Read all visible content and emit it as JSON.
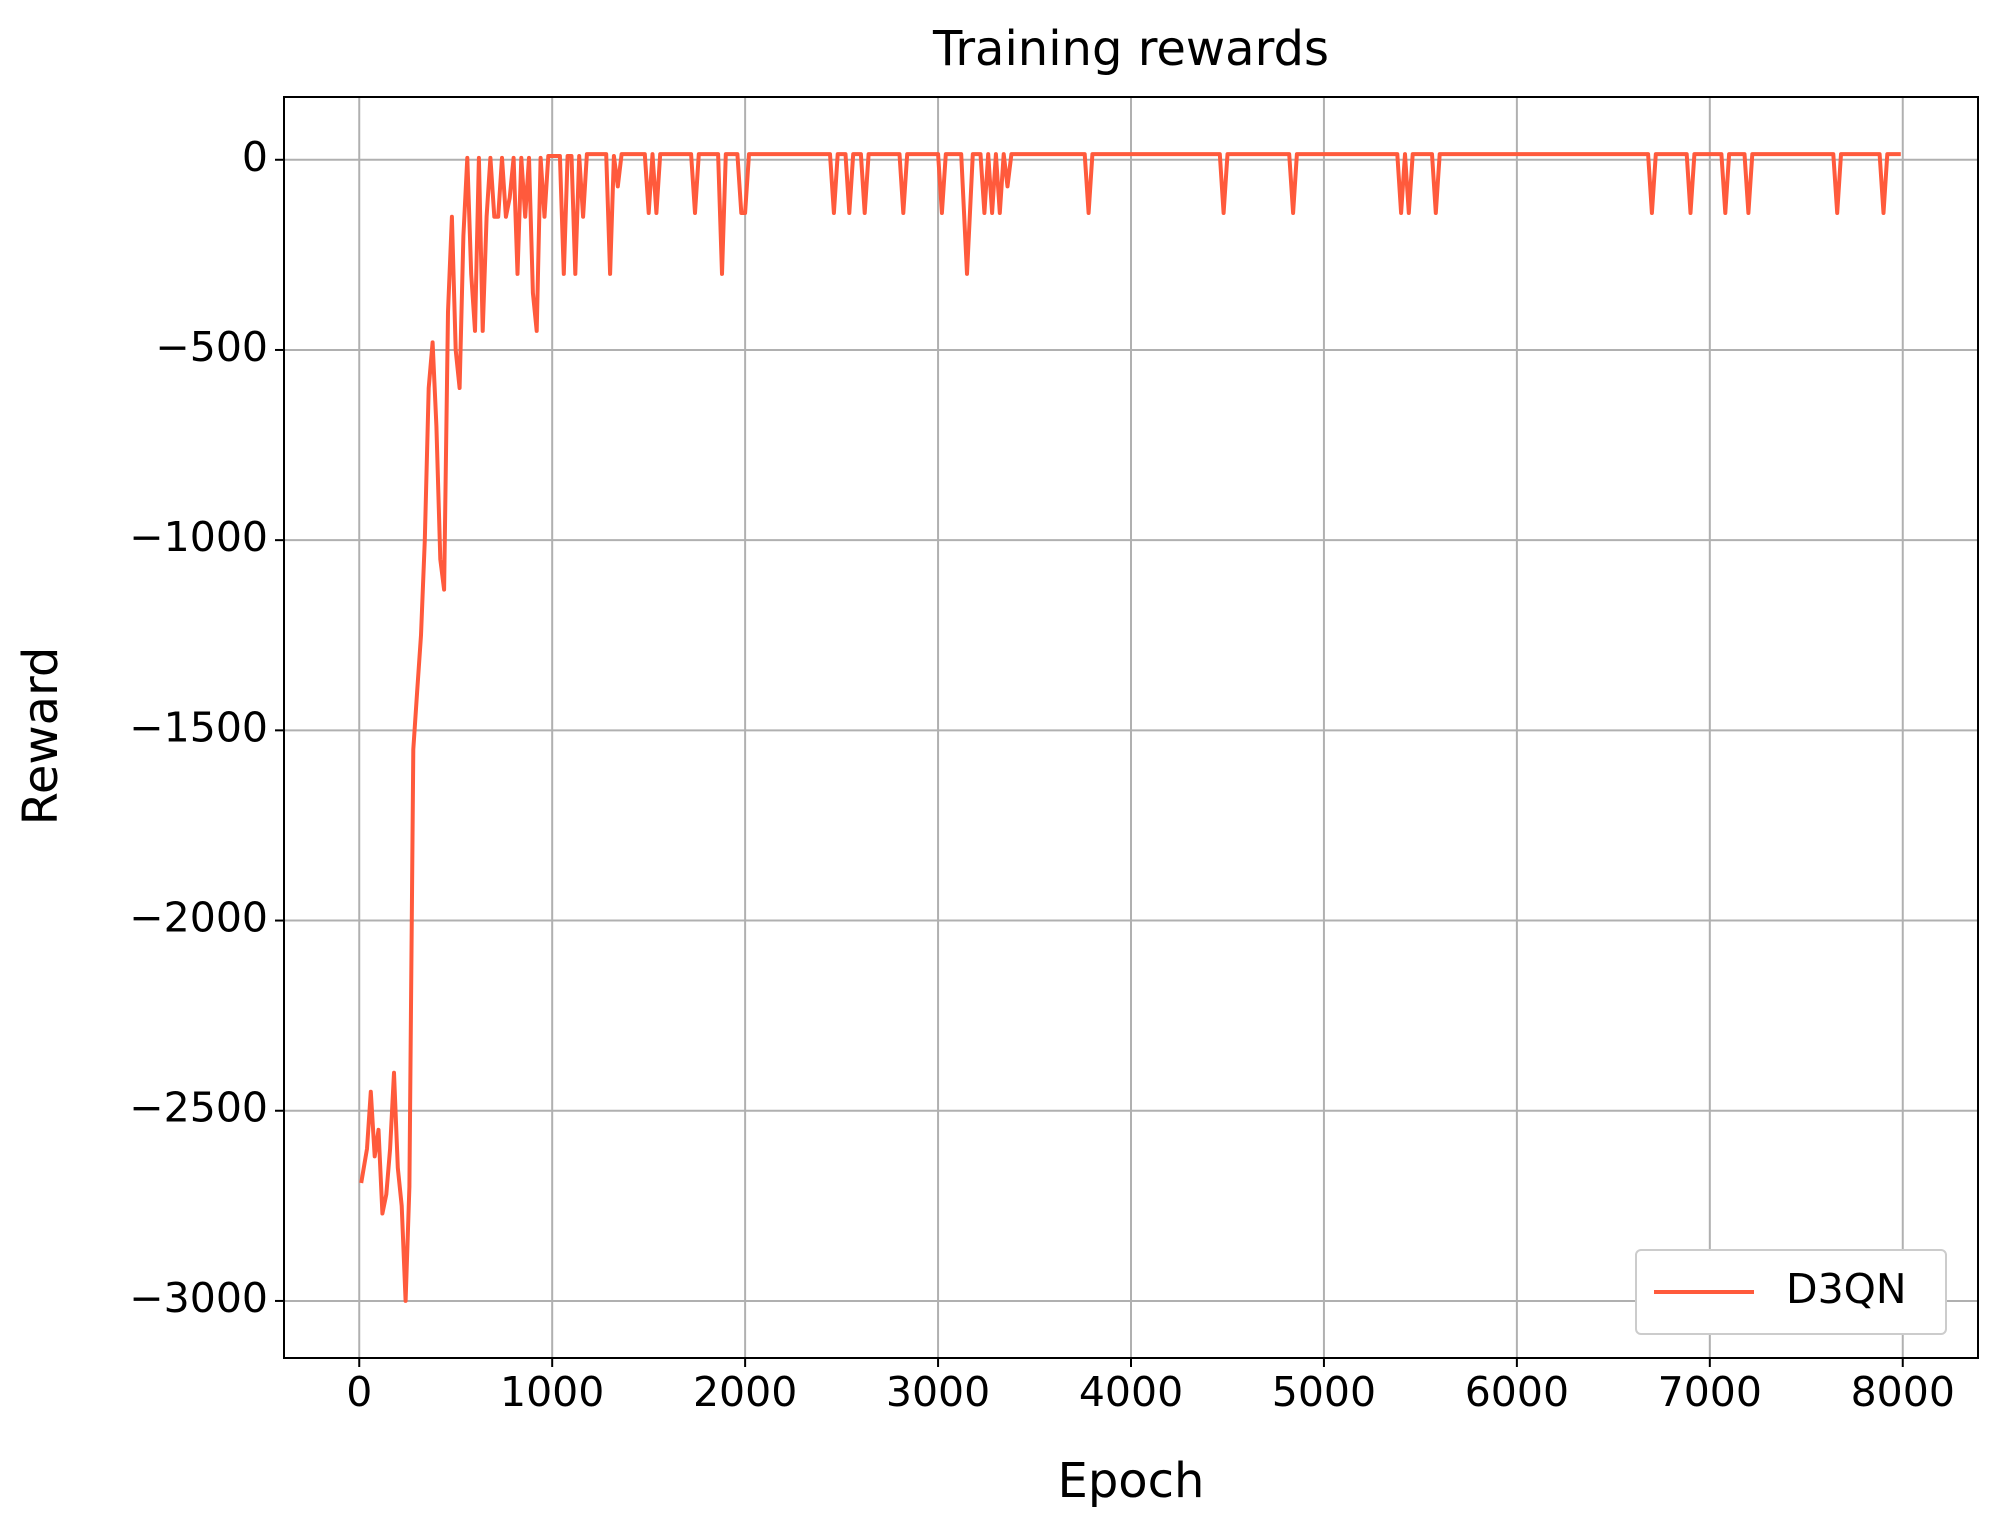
{
  "chart_data": {
    "type": "line",
    "title": "Training rewards",
    "xlabel": "Epoch",
    "ylabel": "Reward",
    "xlim": [
      -390,
      8390
    ],
    "ylim": [
      -3150,
      165
    ],
    "xticks": [
      0,
      1000,
      2000,
      3000,
      4000,
      5000,
      6000,
      7000,
      8000
    ],
    "yticks": [
      0,
      {
        "value": -500,
        "label": "−500"
      },
      {
        "value": -1000,
        "label": "−1000"
      },
      {
        "value": -1500,
        "label": "−1500"
      },
      {
        "value": -2000,
        "label": "−2000"
      },
      {
        "value": -2500,
        "label": "−2500"
      },
      {
        "value": -3000,
        "label": "−3000"
      }
    ],
    "grid": true,
    "legend": "lower right",
    "x": [
      10,
      40,
      60,
      80,
      100,
      120,
      140,
      160,
      180,
      200,
      220,
      240,
      260,
      280,
      300,
      320,
      340,
      360,
      380,
      400,
      420,
      440,
      460,
      480,
      500,
      520,
      540,
      560,
      580,
      600,
      620,
      640,
      660,
      680,
      700,
      720,
      740,
      760,
      780,
      800,
      820,
      840,
      860,
      880,
      900,
      920,
      940,
      960,
      980,
      1000,
      1040,
      1060,
      1080,
      1100,
      1120,
      1140,
      1160,
      1180,
      1280,
      1300,
      1320,
      1340,
      1360,
      1480,
      1500,
      1520,
      1540,
      1560,
      1720,
      1740,
      1760,
      1860,
      1880,
      1900,
      1960,
      1980,
      2000,
      2020,
      2440,
      2460,
      2480,
      2520,
      2540,
      2560,
      2600,
      2620,
      2640,
      2800,
      2820,
      2840,
      3000,
      3020,
      3040,
      3120,
      3150,
      3180,
      3220,
      3240,
      3260,
      3280,
      3300,
      3320,
      3340,
      3360,
      3380,
      3760,
      3780,
      3800,
      4460,
      4480,
      4500,
      4820,
      4840,
      4860,
      5380,
      5400,
      5420,
      5440,
      5460,
      5560,
      5580,
      5600,
      6680,
      6700,
      6720,
      6880,
      6900,
      6920,
      7060,
      7080,
      7100,
      7180,
      7200,
      7220,
      7640,
      7660,
      7680,
      7880,
      7900,
      7920,
      7990
    ],
    "series": [
      {
        "name": "D3QN",
        "color": "#ff5a3c",
        "values": [
          -2690,
          -2600,
          -2450,
          -2620,
          -2550,
          -2770,
          -2720,
          -2600,
          -2400,
          -2650,
          -2750,
          -3000,
          -2700,
          -1550,
          -1400,
          -1250,
          -1000,
          -600,
          -480,
          -700,
          -1050,
          -1130,
          -400,
          -150,
          -500,
          -600,
          -200,
          5,
          -300,
          -450,
          5,
          -450,
          -150,
          5,
          -150,
          -150,
          5,
          -150,
          -100,
          5,
          -300,
          5,
          -150,
          5,
          -350,
          -450,
          5,
          -150,
          10,
          10,
          10,
          -300,
          10,
          10,
          -300,
          10,
          -150,
          15,
          15,
          -300,
          10,
          -70,
          15,
          15,
          -140,
          15,
          -140,
          15,
          15,
          -140,
          15,
          15,
          -300,
          15,
          15,
          -140,
          -140,
          15,
          15,
          -140,
          15,
          15,
          -140,
          15,
          15,
          -140,
          15,
          15,
          -140,
          15,
          15,
          -140,
          15,
          15,
          -300,
          15,
          15,
          -140,
          15,
          -140,
          15,
          -140,
          15,
          -70,
          15,
          15,
          -140,
          15,
          15,
          -140,
          15,
          15,
          -140,
          15,
          15,
          -140,
          15,
          -140,
          15,
          15,
          -140,
          15,
          15,
          -140,
          15,
          15,
          -140,
          15,
          15,
          -140,
          15,
          15,
          -140,
          15,
          15,
          -140,
          15,
          15,
          -140,
          15,
          15
        ]
      }
    ]
  }
}
